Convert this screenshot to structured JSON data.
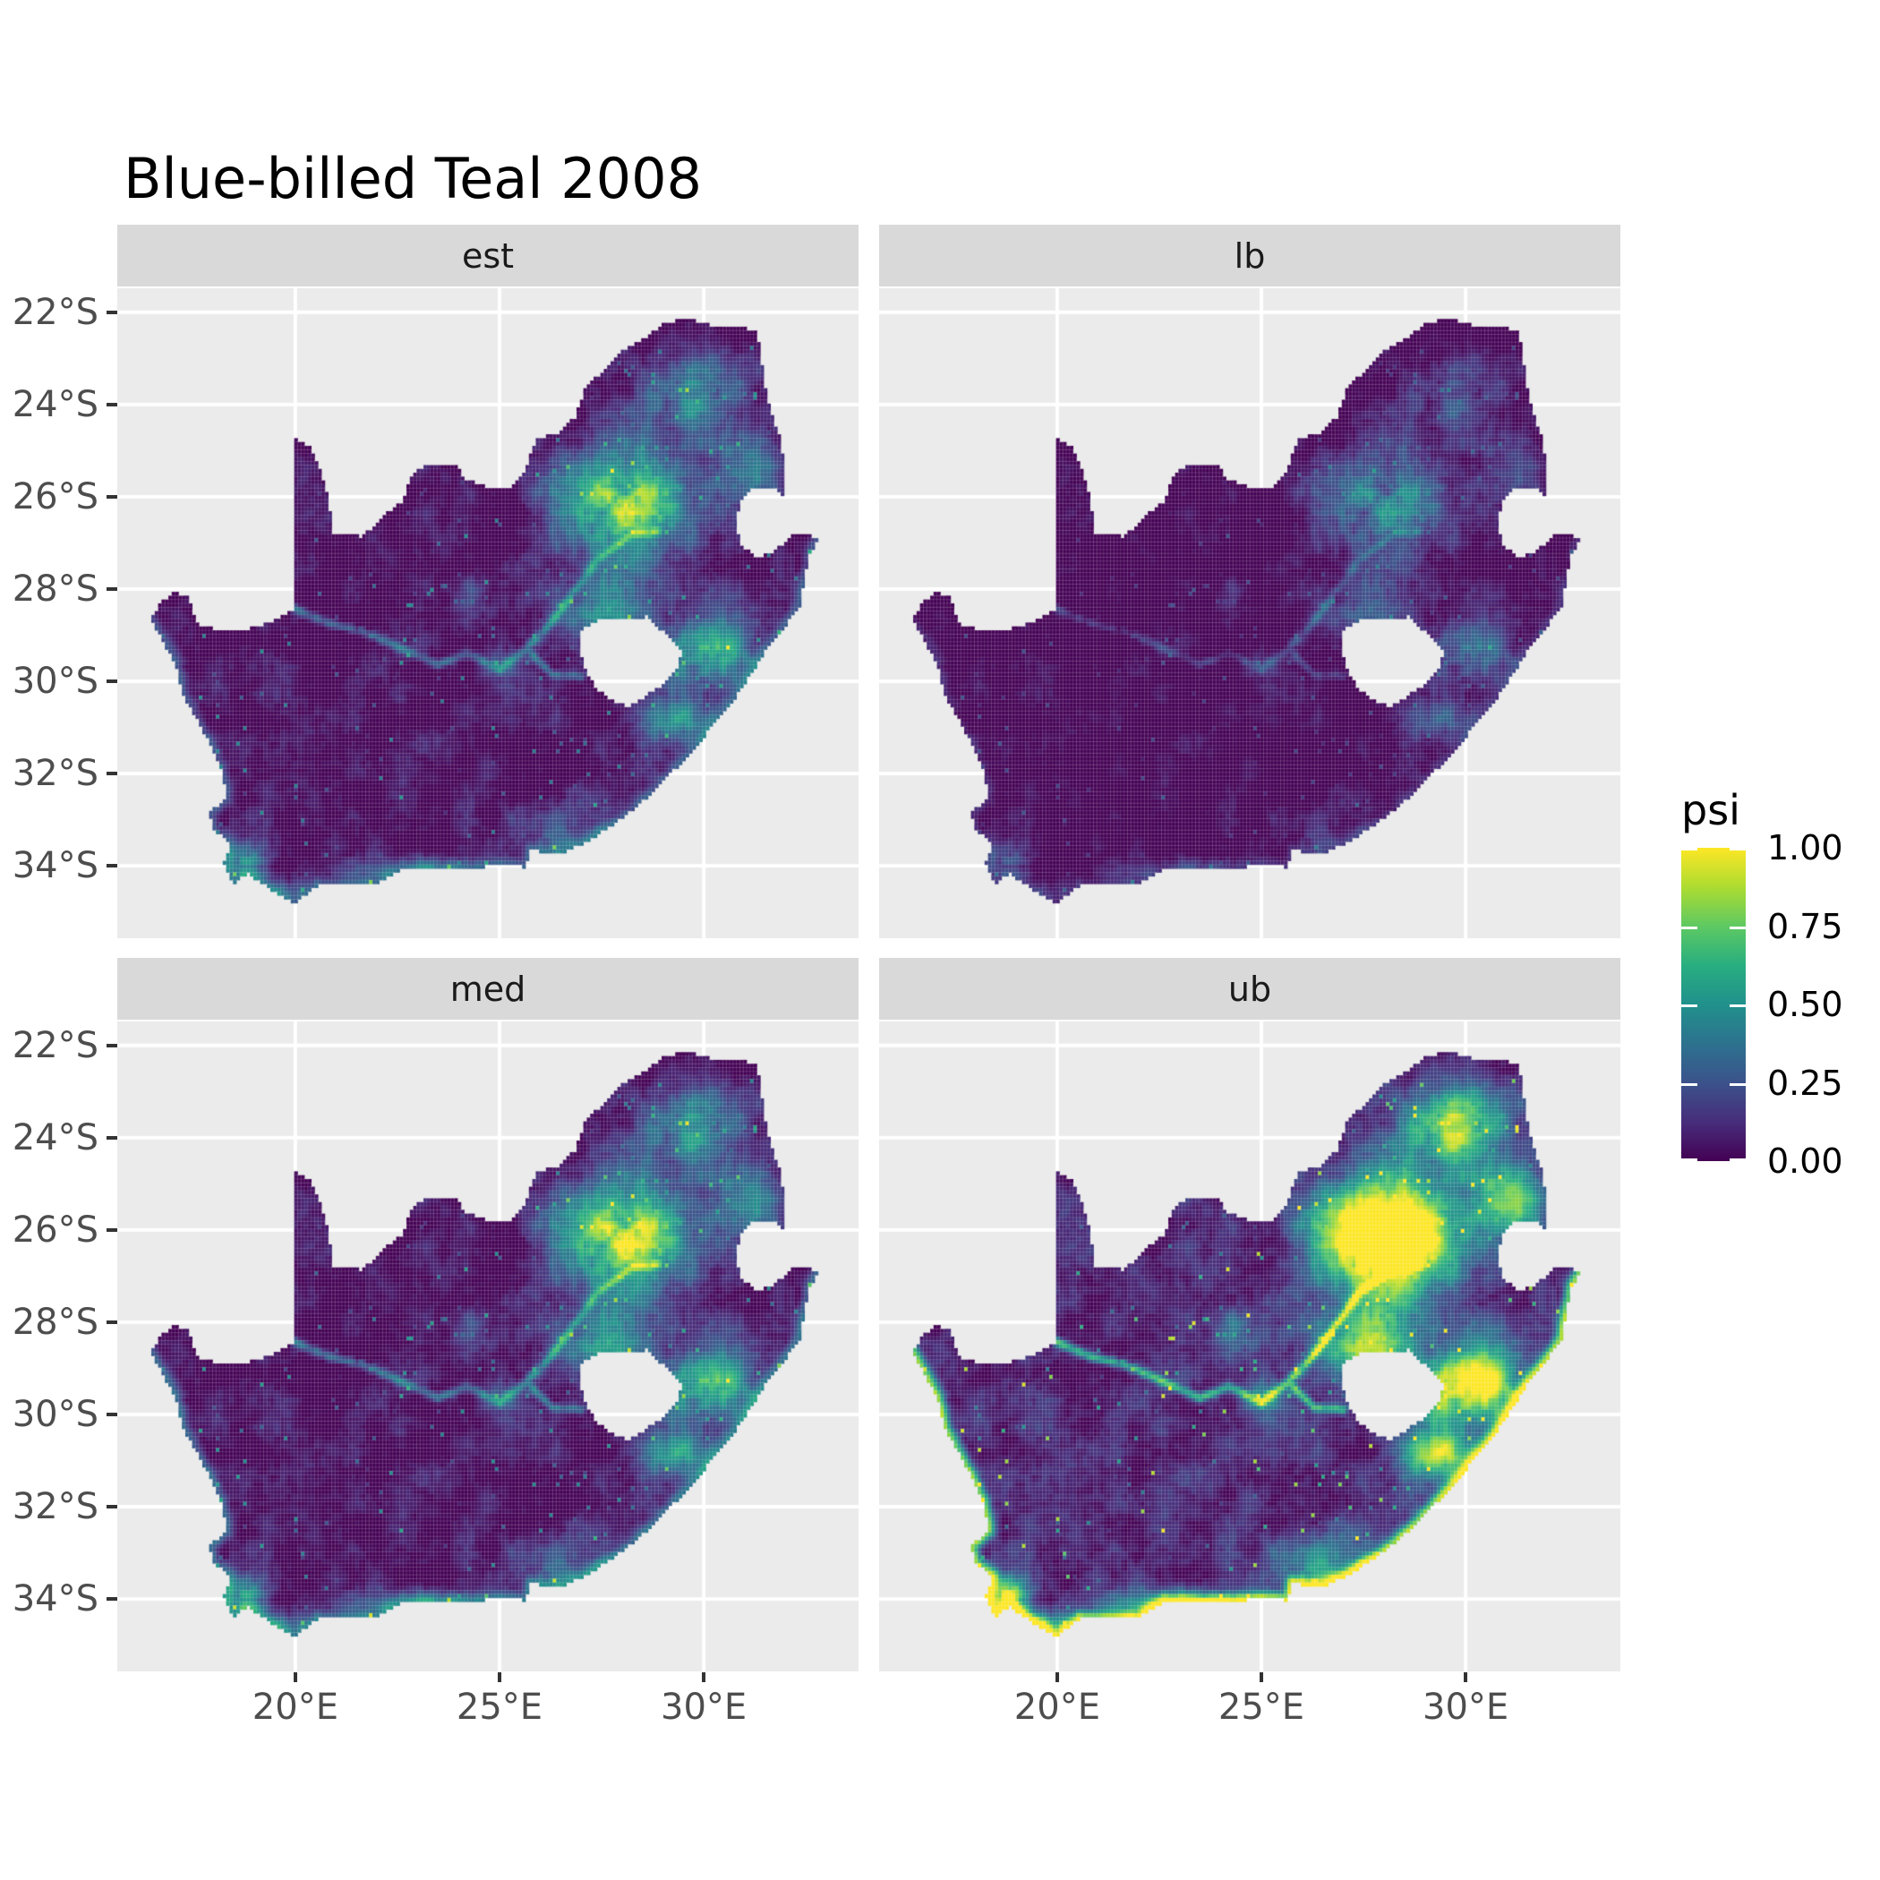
{
  "title": "Blue-billed Teal 2008",
  "theme": {
    "background": "#FFFFFF",
    "panel_bg": "#EBEBEB",
    "strip_bg": "#D9D9D9",
    "grid_color": "#FFFFFF",
    "axis_text_color": "#4D4D4D",
    "tick_color": "#333333",
    "title_color": "#000000",
    "strip_text_color": "#1A1A1A"
  },
  "chart_data": {
    "type": "heatmap",
    "subtype": "faceted raster occupancy map (ggplot2 facet_wrap style)",
    "region": "South Africa",
    "title": "Blue-billed Teal 2008",
    "grid": "on",
    "legend_position": "right",
    "facets": [
      {
        "label": "est",
        "gain": 1.0,
        "noise": 1.0,
        "coast": 0.22,
        "offset": 0.0
      },
      {
        "label": "lb",
        "gain": 0.55,
        "noise": 0.85,
        "coast": 0.1,
        "offset": -0.03
      },
      {
        "label": "med",
        "gain": 1.12,
        "noise": 1.0,
        "coast": 0.3,
        "offset": 0.01
      },
      {
        "label": "ub",
        "gain": 1.9,
        "noise": 1.15,
        "coast": 0.75,
        "offset": 0.06
      }
    ],
    "x_ticks": [
      {
        "value": 20,
        "label": "20°E"
      },
      {
        "value": 25,
        "label": "25°E"
      },
      {
        "value": 30,
        "label": "30°E"
      }
    ],
    "y_ticks": [
      {
        "value": -22,
        "label": "22°S"
      },
      {
        "value": -24,
        "label": "24°S"
      },
      {
        "value": -26,
        "label": "26°S"
      },
      {
        "value": -28,
        "label": "28°S"
      },
      {
        "value": -30,
        "label": "30°S"
      },
      {
        "value": -32,
        "label": "32°S"
      },
      {
        "value": -34,
        "label": "34°S"
      }
    ],
    "lon_range": [
      15.64,
      33.79
    ],
    "lat_range": [
      -21.48,
      -35.57
    ],
    "cell_size_deg": 0.0833,
    "legend": {
      "title": "psi",
      "limits": [
        0,
        1
      ],
      "breaks": [
        {
          "value": 1.0,
          "label": "1.00"
        },
        {
          "value": 0.75,
          "label": "0.75"
        },
        {
          "value": 0.5,
          "label": "0.50"
        },
        {
          "value": 0.25,
          "label": "0.25"
        },
        {
          "value": 0.0,
          "label": "0.00"
        }
      ],
      "colormap_name": "viridis",
      "colormap": [
        "#440154",
        "#472d7b",
        "#3b528b",
        "#2c728e",
        "#21918c",
        "#28ae80",
        "#5ec962",
        "#addc30",
        "#fde725"
      ]
    },
    "map": {
      "boundary": [
        [
          16.45,
          -28.6
        ],
        [
          16.8,
          -29.2
        ],
        [
          17.1,
          -29.7
        ],
        [
          17.25,
          -30.3
        ],
        [
          17.7,
          -31.0
        ],
        [
          18.2,
          -31.9
        ],
        [
          18.33,
          -32.5
        ],
        [
          17.9,
          -32.85
        ],
        [
          18.0,
          -33.2
        ],
        [
          18.42,
          -33.5
        ],
        [
          18.25,
          -33.95
        ],
        [
          18.48,
          -34.38
        ],
        [
          18.83,
          -34.15
        ],
        [
          19.3,
          -34.45
        ],
        [
          19.98,
          -34.82
        ],
        [
          20.55,
          -34.42
        ],
        [
          21.25,
          -34.42
        ],
        [
          22.0,
          -34.4
        ],
        [
          22.6,
          -34.05
        ],
        [
          23.4,
          -34.1
        ],
        [
          24.2,
          -34.05
        ],
        [
          24.9,
          -34.0
        ],
        [
          25.65,
          -34.02
        ],
        [
          25.75,
          -33.65
        ],
        [
          26.45,
          -33.75
        ],
        [
          27.1,
          -33.5
        ],
        [
          27.95,
          -33.0
        ],
        [
          28.65,
          -32.5
        ],
        [
          29.35,
          -31.85
        ],
        [
          30.0,
          -31.2
        ],
        [
          30.65,
          -30.5
        ],
        [
          31.15,
          -29.85
        ],
        [
          31.6,
          -29.2
        ],
        [
          32.0,
          -28.8
        ],
        [
          32.35,
          -28.35
        ],
        [
          32.45,
          -27.8
        ],
        [
          32.6,
          -27.2
        ],
        [
          32.89,
          -26.86
        ],
        [
          32.13,
          -26.84
        ],
        [
          31.7,
          -27.23
        ],
        [
          31.3,
          -27.3
        ],
        [
          30.95,
          -27.1
        ],
        [
          30.78,
          -26.6
        ],
        [
          30.9,
          -26.1
        ],
        [
          31.25,
          -25.78
        ],
        [
          31.7,
          -25.8
        ],
        [
          31.95,
          -25.96
        ],
        [
          31.99,
          -25.4
        ],
        [
          31.85,
          -24.7
        ],
        [
          31.62,
          -24.1
        ],
        [
          31.55,
          -23.86
        ],
        [
          31.3,
          -22.42
        ],
        [
          30.85,
          -22.29
        ],
        [
          30.3,
          -22.34
        ],
        [
          29.9,
          -22.19
        ],
        [
          29.35,
          -22.18
        ],
        [
          29.0,
          -22.25
        ],
        [
          28.55,
          -22.58
        ],
        [
          27.95,
          -22.85
        ],
        [
          27.65,
          -23.22
        ],
        [
          27.15,
          -23.55
        ],
        [
          26.85,
          -24.27
        ],
        [
          26.4,
          -24.63
        ],
        [
          25.9,
          -24.74
        ],
        [
          25.62,
          -25.46
        ],
        [
          25.33,
          -25.77
        ],
        [
          24.7,
          -25.8
        ],
        [
          24.18,
          -25.62
        ],
        [
          23.9,
          -25.3
        ],
        [
          23.25,
          -25.27
        ],
        [
          22.85,
          -25.55
        ],
        [
          22.62,
          -26.1
        ],
        [
          22.2,
          -26.38
        ],
        [
          21.9,
          -26.67
        ],
        [
          21.6,
          -26.86
        ],
        [
          20.9,
          -26.8
        ],
        [
          20.82,
          -26.1
        ],
        [
          20.6,
          -25.4
        ],
        [
          20.35,
          -24.9
        ],
        [
          19.98,
          -24.75
        ],
        [
          19.98,
          -28.42
        ],
        [
          19.45,
          -28.72
        ],
        [
          18.85,
          -28.87
        ],
        [
          18.15,
          -28.9
        ],
        [
          17.6,
          -28.75
        ],
        [
          17.38,
          -28.2
        ],
        [
          17.05,
          -28.05
        ],
        [
          16.75,
          -28.27
        ]
      ],
      "coast_index_range": [
        0,
        37
      ],
      "lesotho_hole": [
        [
          27.0,
          -28.9
        ],
        [
          27.55,
          -28.6
        ],
        [
          28.15,
          -28.68
        ],
        [
          28.6,
          -28.6
        ],
        [
          29.15,
          -29.05
        ],
        [
          29.45,
          -29.35
        ],
        [
          29.35,
          -29.75
        ],
        [
          28.95,
          -30.1
        ],
        [
          28.35,
          -30.45
        ],
        [
          28.1,
          -30.55
        ],
        [
          27.75,
          -30.42
        ],
        [
          27.35,
          -30.15
        ],
        [
          27.05,
          -29.65
        ],
        [
          26.95,
          -29.2
        ]
      ],
      "hotspots": [
        [
          28.1,
          -26.15,
          1.6,
          1.2,
          0.8
        ],
        [
          29.7,
          -23.7,
          1.2,
          0.8,
          0.45
        ],
        [
          30.35,
          -29.3,
          1.0,
          0.9,
          0.5
        ],
        [
          27.6,
          -28.5,
          1.2,
          0.9,
          0.35
        ],
        [
          29.3,
          -30.9,
          0.8,
          0.6,
          0.4
        ],
        [
          29.3,
          -29.6,
          0.5,
          0.7,
          0.3
        ],
        [
          26.6,
          -33.3,
          1.4,
          0.7,
          0.25
        ],
        [
          18.75,
          -33.95,
          0.5,
          0.4,
          0.5
        ],
        [
          19.5,
          -34.55,
          0.9,
          0.3,
          0.35
        ],
        [
          22.8,
          -34.1,
          1.7,
          0.35,
          0.25
        ],
        [
          25.1,
          -29.6,
          0.5,
          0.45,
          0.2
        ],
        [
          31.0,
          -25.3,
          0.9,
          0.7,
          0.4
        ],
        [
          24.6,
          -28.3,
          0.8,
          0.6,
          0.15
        ]
      ],
      "rivers": [
        [
          [
            19.98,
            -28.42
          ],
          [
            20.8,
            -28.75
          ],
          [
            21.6,
            -28.9
          ],
          [
            22.5,
            -29.25
          ],
          [
            23.5,
            -29.65
          ],
          [
            24.2,
            -29.4
          ],
          [
            25.0,
            -29.75
          ],
          [
            25.65,
            -29.3
          ],
          [
            26.3,
            -29.85
          ],
          [
            27.0,
            -29.9
          ]
        ],
        [
          [
            25.6,
            -29.35
          ],
          [
            26.2,
            -28.8
          ],
          [
            26.8,
            -28.1
          ],
          [
            27.4,
            -27.35
          ],
          [
            28.2,
            -26.85
          ],
          [
            28.9,
            -26.75
          ]
        ]
      ],
      "river_boost": 0.3
    }
  }
}
